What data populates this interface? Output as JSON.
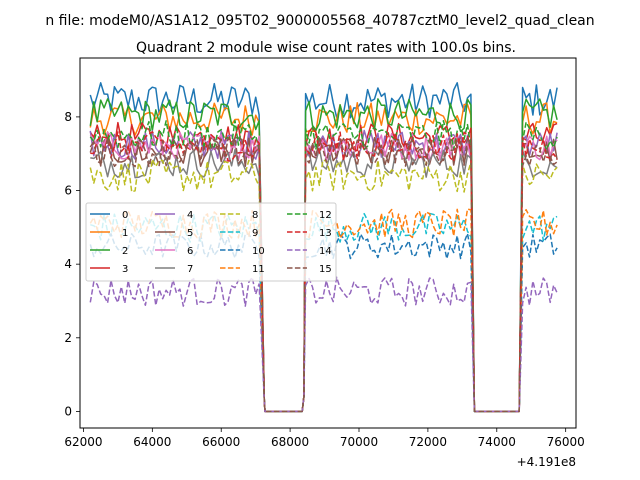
{
  "figure": {
    "suptitle": "n file: modeM0/AS1A12_095T02_9000005568_40787cztM0_level2_quad_clean"
  },
  "chart_data": {
    "type": "line",
    "title": "Quadrant 2 module wise count rates with 100.0s bins.",
    "xlabel": "",
    "ylabel": "",
    "x_offset_label": "+4.191e8",
    "xlim": [
      61900,
      76300
    ],
    "ylim": [
      -0.45,
      9.6
    ],
    "x_ticks": [
      62000,
      64000,
      66000,
      68000,
      70000,
      72000,
      74000,
      76000
    ],
    "x_tick_labels": [
      "62000",
      "64000",
      "66000",
      "68000",
      "70000",
      "72000",
      "74000",
      "76000"
    ],
    "y_ticks": [
      0,
      2,
      4,
      6,
      8
    ],
    "y_tick_labels": [
      "0",
      "2",
      "4",
      "6",
      "8"
    ],
    "grid": false,
    "legend": {
      "placement": "center-left",
      "columns": 4
    },
    "gaps": [
      {
        "down_start": 67150,
        "zero_start": 67250,
        "zero_end": 68350,
        "up_end": 68450
      },
      {
        "down_start": 73250,
        "zero_start": 73350,
        "zero_end": 74650,
        "up_end": 74750
      }
    ],
    "x_ranges": [
      [
        62200,
        67150
      ],
      [
        68450,
        73250
      ],
      [
        74750,
        75750
      ]
    ],
    "series": [
      {
        "name": "0",
        "color": "#1f77b4",
        "dash": "solid",
        "mean": 8.45,
        "noise": 0.3
      },
      {
        "name": "1",
        "color": "#ff7f0e",
        "dash": "solid",
        "mean": 7.95,
        "noise": 0.28
      },
      {
        "name": "2",
        "color": "#2ca02c",
        "dash": "solid",
        "mean": 8.05,
        "noise": 0.28
      },
      {
        "name": "3",
        "color": "#d62728",
        "dash": "solid",
        "mean": 7.45,
        "noise": 0.25
      },
      {
        "name": "4",
        "color": "#9467bd",
        "dash": "solid",
        "mean": 7.25,
        "noise": 0.25
      },
      {
        "name": "5",
        "color": "#8c564b",
        "dash": "solid",
        "mean": 7.05,
        "noise": 0.25
      },
      {
        "name": "6",
        "color": "#e377c2",
        "dash": "solid",
        "mean": 7.2,
        "noise": 0.25
      },
      {
        "name": "7",
        "color": "#7f7f7f",
        "dash": "solid",
        "mean": 6.75,
        "noise": 0.25
      },
      {
        "name": "8",
        "color": "#bcbd22",
        "dash": "dashed",
        "mean": 6.4,
        "noise": 0.28
      },
      {
        "name": "9",
        "color": "#17becf",
        "dash": "dashed",
        "mean": 5.0,
        "noise": 0.25
      },
      {
        "name": "10",
        "color": "#1f77b4",
        "dash": "dashed",
        "mean": 4.5,
        "noise": 0.22
      },
      {
        "name": "11",
        "color": "#ff7f0e",
        "dash": "dashed",
        "mean": 5.1,
        "noise": 0.25
      },
      {
        "name": "12",
        "color": "#2ca02c",
        "dash": "dashed",
        "mean": 7.5,
        "noise": 0.25
      },
      {
        "name": "13",
        "color": "#d62728",
        "dash": "dashed",
        "mean": 7.2,
        "noise": 0.25
      },
      {
        "name": "14",
        "color": "#9467bd",
        "dash": "dashed",
        "mean": 3.25,
        "noise": 0.25
      },
      {
        "name": "15",
        "color": "#8c564b",
        "dash": "dashed",
        "mean": 7.05,
        "noise": 0.25
      }
    ]
  }
}
